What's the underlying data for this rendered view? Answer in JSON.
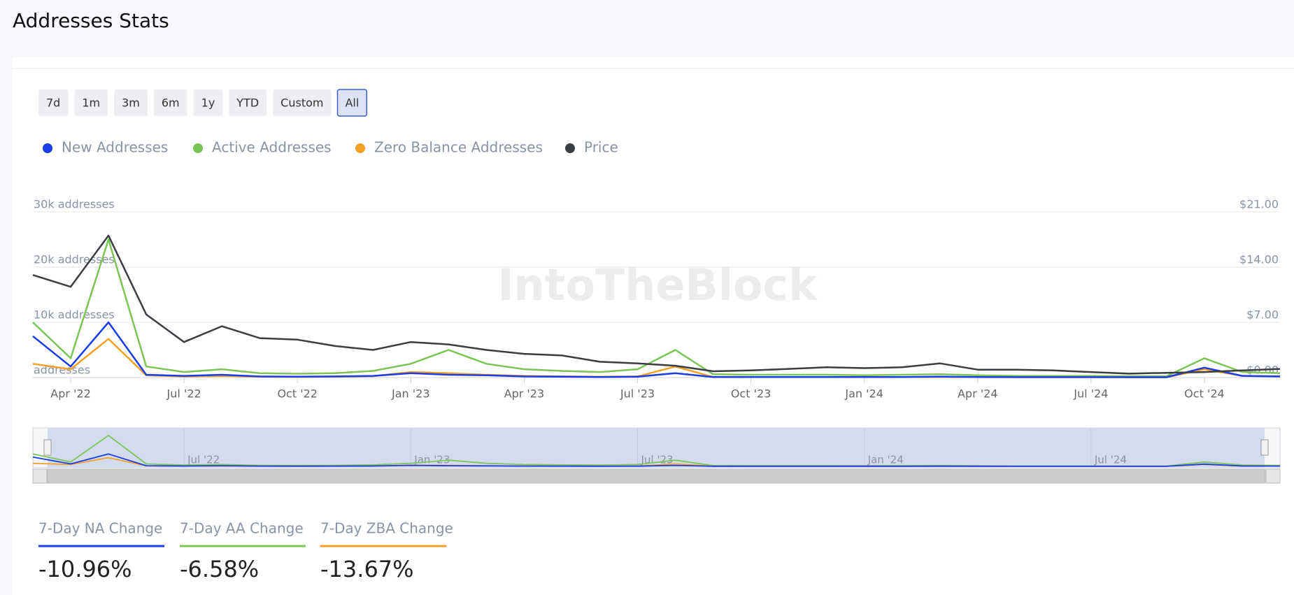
{
  "page_title": "Addresses Stats",
  "range_buttons": [
    "7d",
    "1m",
    "3m",
    "6m",
    "1y",
    "YTD",
    "Custom",
    "All"
  ],
  "active_button": "All",
  "watermark": "IntoTheBlock",
  "chart_data": {
    "type": "line",
    "x": [
      "2022-03",
      "2022-04",
      "2022-05",
      "2022-06",
      "2022-07",
      "2022-08",
      "2022-09",
      "2022-10",
      "2022-11",
      "2022-12",
      "2023-01",
      "2023-02",
      "2023-03",
      "2023-04",
      "2023-05",
      "2023-06",
      "2023-07",
      "2023-08",
      "2023-09",
      "2023-10",
      "2023-11",
      "2023-12",
      "2024-01",
      "2024-02",
      "2024-03",
      "2024-04",
      "2024-05",
      "2024-06",
      "2024-07",
      "2024-08",
      "2024-09",
      "2024-10",
      "2024-11",
      "2024-12"
    ],
    "xlim": [
      "2022-03",
      "2024-12"
    ],
    "xticks": [
      {
        "value": "2022-04",
        "label": "Apr '22"
      },
      {
        "value": "2022-07",
        "label": "Jul '22"
      },
      {
        "value": "2022-10",
        "label": "Oct '22"
      },
      {
        "value": "2023-01",
        "label": "Jan '23"
      },
      {
        "value": "2023-04",
        "label": "Apr '23"
      },
      {
        "value": "2023-07",
        "label": "Jul '23"
      },
      {
        "value": "2023-10",
        "label": "Oct '23"
      },
      {
        "value": "2024-01",
        "label": "Jan '24"
      },
      {
        "value": "2024-04",
        "label": "Apr '24"
      },
      {
        "value": "2024-07",
        "label": "Jul '24"
      },
      {
        "value": "2024-10",
        "label": "Oct '24"
      }
    ],
    "ylim": [
      0,
      30000
    ],
    "yticks": [
      {
        "value": 0,
        "label": "addresses"
      },
      {
        "value": 10000,
        "label": "10k addresses"
      },
      {
        "value": 20000,
        "label": "20k addresses"
      },
      {
        "value": 30000,
        "label": "30k addresses"
      }
    ],
    "y2lim": [
      0,
      21
    ],
    "y2ticks": [
      {
        "value": 0,
        "label": "$0.00"
      },
      {
        "value": 7,
        "label": "$7.00"
      },
      {
        "value": 14,
        "label": "$14.00"
      },
      {
        "value": 21,
        "label": "$21.00"
      }
    ],
    "grid": true,
    "series": [
      {
        "name": "New Addresses",
        "color": "#1a3de8",
        "values": [
          7500,
          2000,
          10000,
          500,
          300,
          500,
          200,
          150,
          200,
          300,
          800,
          500,
          400,
          200,
          150,
          100,
          150,
          800,
          100,
          100,
          100,
          100,
          100,
          100,
          150,
          100,
          80,
          80,
          80,
          60,
          60,
          1800,
          300,
          200
        ]
      },
      {
        "name": "Active Addresses",
        "color": "#7ac555",
        "values": [
          10000,
          3500,
          25000,
          2000,
          1000,
          1500,
          800,
          700,
          800,
          1200,
          2500,
          5000,
          2500,
          1500,
          1200,
          1000,
          1500,
          5000,
          600,
          500,
          500,
          500,
          400,
          500,
          600,
          400,
          300,
          300,
          300,
          250,
          250,
          3500,
          1000,
          800
        ]
      },
      {
        "name": "Zero Balance Addresses",
        "color": "#f4a024",
        "values": [
          2500,
          1500,
          7000,
          400,
          200,
          300,
          150,
          120,
          150,
          250,
          1000,
          800,
          500,
          300,
          200,
          150,
          200,
          2000,
          100,
          100,
          100,
          100,
          100,
          100,
          120,
          100,
          80,
          80,
          80,
          60,
          60,
          1500,
          300,
          200
        ]
      },
      {
        "name": "Price",
        "color": "#3a3d42",
        "axis": "y2",
        "values": [
          13,
          11.5,
          18,
          8,
          4.5,
          6.5,
          5,
          4.8,
          4,
          3.5,
          4.5,
          4.2,
          3.5,
          3,
          2.8,
          2,
          1.8,
          1.5,
          0.8,
          0.9,
          1.1,
          1.3,
          1.2,
          1.3,
          1.8,
          1.0,
          1.0,
          0.9,
          0.7,
          0.5,
          0.6,
          0.7,
          0.9,
          1.1
        ]
      }
    ],
    "navigator_xticks": [
      {
        "value": "2022-07",
        "label": "Jul '22"
      },
      {
        "value": "2023-01",
        "label": "Jan '23"
      },
      {
        "value": "2023-07",
        "label": "Jul '23"
      },
      {
        "value": "2024-01",
        "label": "Jan '24"
      },
      {
        "value": "2024-07",
        "label": "Jul '24"
      }
    ]
  },
  "stats": [
    {
      "label": "7-Day NA Change",
      "value": "-10.96%",
      "color": "#1a3de8"
    },
    {
      "label": "7-Day AA Change",
      "value": "-6.58%",
      "color": "#7ac555"
    },
    {
      "label": "7-Day ZBA Change",
      "value": "-13.67%",
      "color": "#f4a024"
    }
  ]
}
